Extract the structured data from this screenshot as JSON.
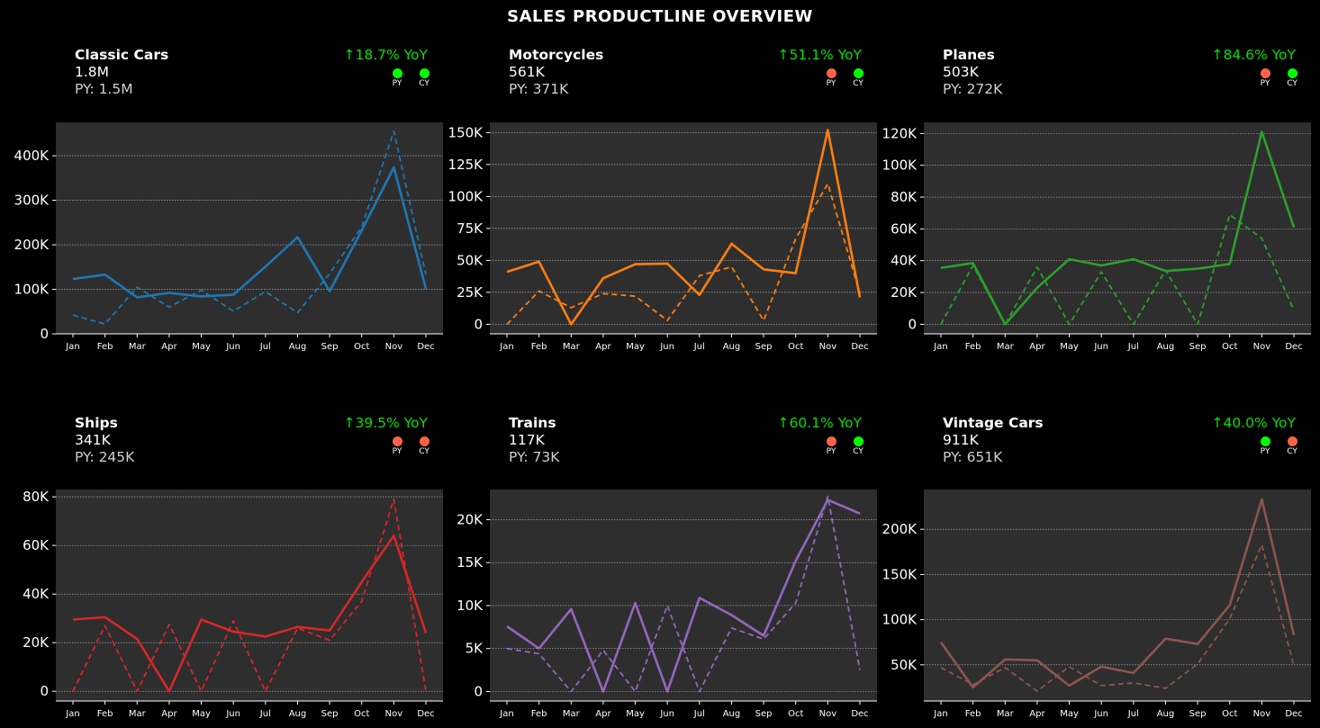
{
  "title": "SALES PRODUCTLINE OVERVIEW",
  "colors": {
    "up": "#00ff00",
    "down": "#ff6347",
    "good_text": "#00e000",
    "plot_bg": "#2e2e2e"
  },
  "chart_data": [
    {
      "type": "line",
      "name": "Classic Cars",
      "value": "1.8M",
      "py": "PY: 1.5M",
      "yoy": "↑18.7% YoY",
      "py_status": "up",
      "cy_status": "up",
      "color": "#1f77b4",
      "categories": [
        "Jan",
        "Feb",
        "Mar",
        "Apr",
        "May",
        "Jun",
        "Jul",
        "Aug",
        "Sep",
        "Oct",
        "Nov",
        "Dec"
      ],
      "ylim": [
        0,
        475000
      ],
      "yticks": [
        0,
        100000,
        200000,
        300000,
        400000
      ],
      "yticklabels": [
        "0",
        "100K",
        "200K",
        "300K",
        "400K"
      ],
      "series": [
        {
          "name": "CY",
          "values": [
            123000,
            133000,
            82000,
            92000,
            84000,
            88000,
            151000,
            217000,
            96000,
            232000,
            374000,
            101000
          ]
        },
        {
          "name": "PY",
          "values": [
            42000,
            22000,
            105000,
            60000,
            98000,
            51000,
            95000,
            48000,
            135000,
            240000,
            455000,
            133000
          ]
        }
      ]
    },
    {
      "type": "line",
      "name": "Motorcycles",
      "value": "561K",
      "py": "PY: 371K",
      "yoy": "↑51.1% YoY",
      "py_status": "down",
      "cy_status": "up",
      "color": "#ff7f0e",
      "categories": [
        "Jan",
        "Feb",
        "Mar",
        "Apr",
        "May",
        "Jun",
        "Jul",
        "Aug",
        "Sep",
        "Oct",
        "Nov",
        "Dec"
      ],
      "ylim": [
        -7500,
        158000
      ],
      "yticks": [
        0,
        25000,
        50000,
        75000,
        100000,
        125000,
        150000
      ],
      "yticklabels": [
        "0",
        "25K",
        "50K",
        "75K",
        "100K",
        "125K",
        "150K"
      ],
      "series": [
        {
          "name": "CY",
          "values": [
            41000,
            49000,
            0,
            36000,
            47000,
            47500,
            23000,
            63000,
            43000,
            40000,
            152000,
            21000
          ]
        },
        {
          "name": "PY",
          "values": [
            0,
            26000,
            13000,
            24000,
            22000,
            3000,
            38000,
            45000,
            3000,
            67000,
            110000,
            24000
          ]
        }
      ]
    },
    {
      "type": "line",
      "name": "Planes",
      "value": "503K",
      "py": "PY: 272K",
      "yoy": "↑84.6% YoY",
      "py_status": "down",
      "cy_status": "up",
      "color": "#2ca02c",
      "categories": [
        "Jan",
        "Feb",
        "Mar",
        "Apr",
        "May",
        "Jun",
        "Jul",
        "Aug",
        "Sep",
        "Oct",
        "Nov",
        "Dec"
      ],
      "ylim": [
        -6000,
        127000
      ],
      "yticks": [
        0,
        20000,
        40000,
        60000,
        80000,
        100000,
        120000
      ],
      "yticklabels": [
        "0",
        "20K",
        "40K",
        "60K",
        "80K",
        "100K",
        "120K"
      ],
      "series": [
        {
          "name": "CY",
          "values": [
            35500,
            38500,
            0,
            23000,
            41000,
            37000,
            41000,
            33500,
            35000,
            38000,
            121000,
            61000
          ]
        },
        {
          "name": "PY",
          "values": [
            0,
            37000,
            0,
            36000,
            0,
            33000,
            0,
            34000,
            0,
            69000,
            54000,
            9000
          ]
        }
      ]
    },
    {
      "type": "line",
      "name": "Ships",
      "value": "341K",
      "py": "PY: 245K",
      "yoy": "↑39.5% YoY",
      "py_status": "down",
      "cy_status": "down",
      "color": "#d62728",
      "categories": [
        "Jan",
        "Feb",
        "Mar",
        "Apr",
        "May",
        "Jun",
        "Jul",
        "Aug",
        "Sep",
        "Oct",
        "Nov",
        "Dec"
      ],
      "ylim": [
        -4000,
        83000
      ],
      "yticks": [
        0,
        20000,
        40000,
        60000,
        80000
      ],
      "yticklabels": [
        "0",
        "20K",
        "40K",
        "60K",
        "80K"
      ],
      "series": [
        {
          "name": "CY",
          "values": [
            29500,
            30500,
            21500,
            0,
            29500,
            24500,
            22500,
            26500,
            25000,
            45000,
            64000,
            24000
          ]
        },
        {
          "name": "PY",
          "values": [
            0,
            27000,
            0,
            27500,
            0,
            29000,
            0,
            26000,
            21000,
            37000,
            79000,
            0
          ]
        }
      ]
    },
    {
      "type": "line",
      "name": "Trains",
      "value": "117K",
      "py": "PY: 73K",
      "yoy": "↑60.1% YoY",
      "py_status": "down",
      "cy_status": "up",
      "color": "#9467bd",
      "categories": [
        "Jan",
        "Feb",
        "Mar",
        "Apr",
        "May",
        "Jun",
        "Jul",
        "Aug",
        "Sep",
        "Oct",
        "Nov",
        "Dec"
      ],
      "ylim": [
        -1100,
        23500
      ],
      "yticks": [
        0,
        5000,
        10000,
        15000,
        20000
      ],
      "yticklabels": [
        "0",
        "5K",
        "10K",
        "15K",
        "20K"
      ],
      "series": [
        {
          "name": "CY",
          "values": [
            7600,
            5000,
            9600,
            0,
            10300,
            0,
            10900,
            8900,
            6500,
            15200,
            22300,
            20700
          ]
        },
        {
          "name": "PY",
          "values": [
            5000,
            4400,
            0,
            4800,
            0,
            10000,
            0,
            7400,
            6100,
            10300,
            22700,
            2500
          ]
        }
      ]
    },
    {
      "type": "line",
      "name": "Vintage Cars",
      "value": "911K",
      "py": "PY: 651K",
      "yoy": "↑40.0% YoY",
      "py_status": "up",
      "cy_status": "down",
      "color": "#8c564b",
      "categories": [
        "Jan",
        "Feb",
        "Mar",
        "Apr",
        "May",
        "Jun",
        "Jul",
        "Aug",
        "Sep",
        "Oct",
        "Nov",
        "Dec"
      ],
      "ylim": [
        10000,
        244000
      ],
      "yticks": [
        50000,
        100000,
        150000,
        200000
      ],
      "yticklabels": [
        "50K",
        "100K",
        "150K",
        "200K"
      ],
      "series": [
        {
          "name": "CY",
          "values": [
            75000,
            25000,
            56000,
            55000,
            27000,
            48000,
            41000,
            79000,
            73000,
            116000,
            233000,
            83000
          ]
        },
        {
          "name": "PY",
          "values": [
            47000,
            28000,
            47000,
            21000,
            48000,
            27000,
            30000,
            24000,
            51000,
            101000,
            183000,
            49000
          ]
        }
      ]
    }
  ],
  "dot_labels": {
    "py": "PY",
    "cy": "CY"
  }
}
